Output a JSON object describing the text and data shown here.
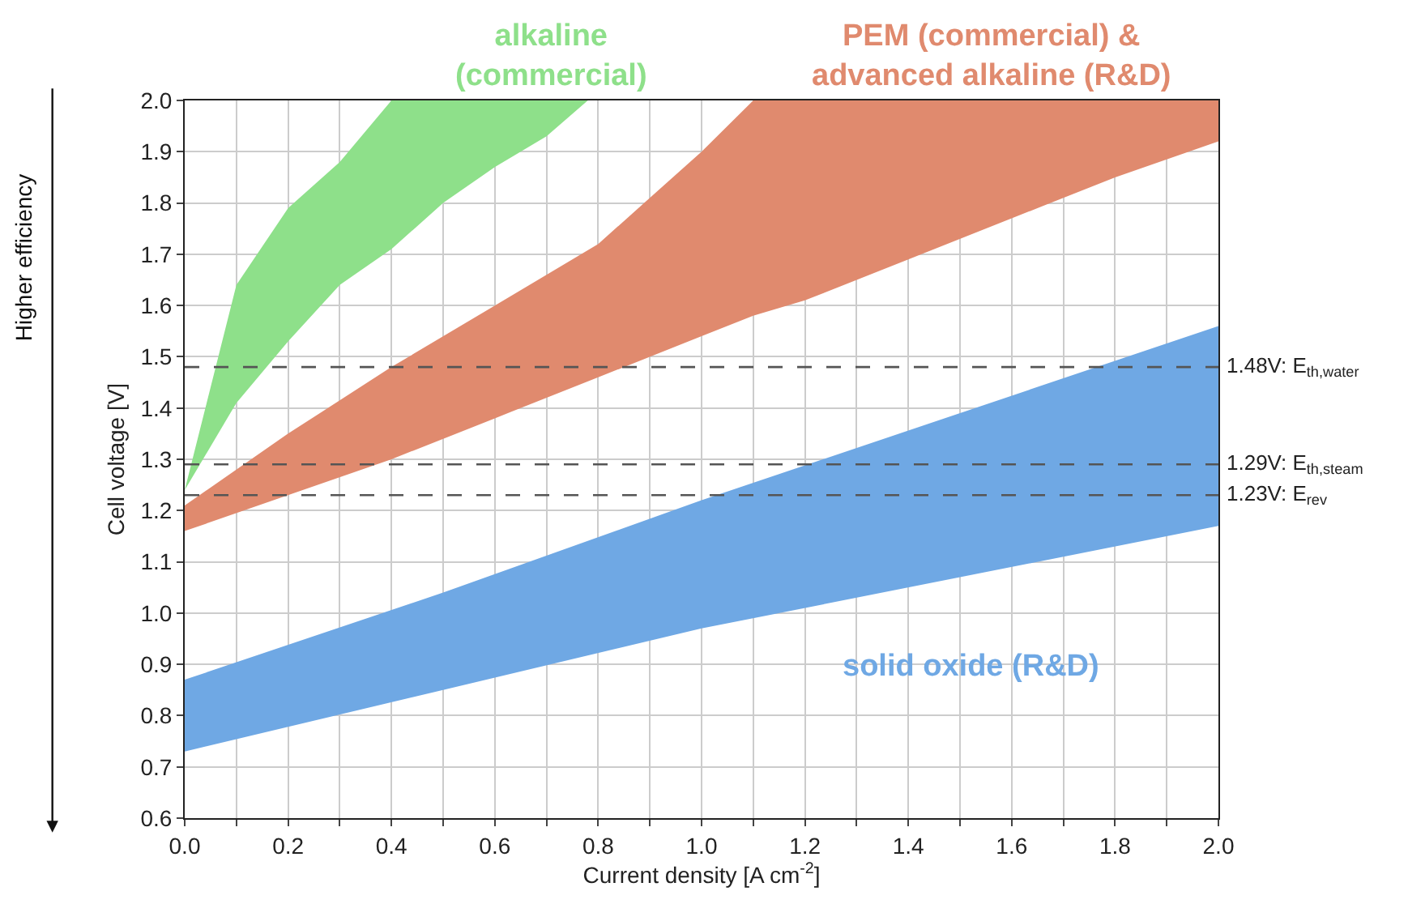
{
  "chart_data": {
    "type": "area",
    "xlabel": "Current density [A cm$^{-2}$]",
    "ylabel": "Cell voltage [V]",
    "xlim": [
      0,
      2.0
    ],
    "ylim": [
      0.6,
      2.0
    ],
    "xticks": [
      {
        "value": 0,
        "label": "0.0"
      },
      {
        "value": 0.1,
        "label": null
      },
      {
        "value": 0.2,
        "label": "0.2"
      },
      {
        "value": 0.3,
        "label": null
      },
      {
        "value": 0.4,
        "label": "0.4"
      },
      {
        "value": 0.5,
        "label": null
      },
      {
        "value": 0.6,
        "label": "0.6"
      },
      {
        "value": 0.7,
        "label": null
      },
      {
        "value": 0.8,
        "label": "0.8"
      },
      {
        "value": 0.9,
        "label": null
      },
      {
        "value": 1.0,
        "label": "1.0"
      },
      {
        "value": 1.1,
        "label": null
      },
      {
        "value": 1.2,
        "label": "1.2"
      },
      {
        "value": 1.3,
        "label": null
      },
      {
        "value": 1.4,
        "label": "1.4"
      },
      {
        "value": 1.5,
        "label": null
      },
      {
        "value": 1.6,
        "label": "1.6"
      },
      {
        "value": 1.7,
        "label": null
      },
      {
        "value": 1.8,
        "label": "1.8"
      },
      {
        "value": 1.9,
        "label": null
      },
      {
        "value": 2.0,
        "label": "2.0"
      }
    ],
    "yticks": [
      {
        "value": 0.6,
        "label": "0.6"
      },
      {
        "value": 0.7,
        "label": "0.7"
      },
      {
        "value": 0.8,
        "label": "0.8"
      },
      {
        "value": 0.9,
        "label": "0.9"
      },
      {
        "value": 1.0,
        "label": "1.0"
      },
      {
        "value": 1.1,
        "label": "1.1"
      },
      {
        "value": 1.2,
        "label": "1.2"
      },
      {
        "value": 1.3,
        "label": "1.3"
      },
      {
        "value": 1.4,
        "label": "1.4"
      },
      {
        "value": 1.5,
        "label": "1.5"
      },
      {
        "value": 1.6,
        "label": "1.6"
      },
      {
        "value": 1.7,
        "label": "1.7"
      },
      {
        "value": 1.8,
        "label": "1.8"
      },
      {
        "value": 1.9,
        "label": "1.9"
      },
      {
        "value": 2.0,
        "label": "2.0"
      }
    ],
    "grid": true,
    "legend": false,
    "series": [
      {
        "name": "alkaline\n(commercial)",
        "color": "#8ee08a",
        "x": [
          0,
          0.1,
          0.2,
          0.3,
          0.4,
          0.5,
          0.6,
          0.7,
          0.78
        ],
        "values": [
          null,
          null,
          null,
          null,
          null,
          null,
          null,
          null,
          null
        ],
        "upper": [
          1.24,
          1.64,
          1.79,
          1.88,
          2.0,
          2.0,
          2.0,
          2.0,
          2.0
        ],
        "lower": [
          1.24,
          1.41,
          1.53,
          1.64,
          1.71,
          1.8,
          1.87,
          1.93,
          2.0
        ]
      },
      {
        "name": "PEM (commercial) &\nadvanced alkaline (R&D)",
        "color": "#e08a6e",
        "x": [
          0,
          0.2,
          0.4,
          0.6,
          0.8,
          1.0,
          1.1,
          1.2,
          1.4,
          1.6,
          1.8,
          2.0
        ],
        "values": [
          null,
          null,
          null,
          null,
          null,
          null,
          null,
          null,
          null,
          null,
          null,
          null
        ],
        "upper": [
          1.21,
          1.35,
          1.48,
          1.6,
          1.72,
          1.9,
          2.0,
          2.0,
          2.0,
          2.0,
          2.0,
          2.0
        ],
        "lower": [
          1.16,
          1.23,
          1.3,
          1.38,
          1.46,
          1.54,
          1.58,
          1.61,
          1.69,
          1.77,
          1.85,
          1.92
        ]
      },
      {
        "name": "solid oxide (R&D)",
        "color": "#6fa8e4",
        "x": [
          0,
          0.5,
          1.0,
          1.5,
          2.0
        ],
        "values": [
          null,
          null,
          null,
          null,
          null
        ],
        "upper": [
          0.87,
          1.04,
          1.22,
          1.39,
          1.56
        ],
        "lower": [
          0.73,
          0.85,
          0.97,
          1.07,
          1.17
        ]
      }
    ],
    "ref_lines": [
      {
        "axis": "y",
        "value": 1.48,
        "label": "1.48V: E$_{th,water}$",
        "color": "#555555",
        "line_style": "dashed"
      },
      {
        "axis": "y",
        "value": 1.29,
        "label": "1.29V: E$_{th,steam}$",
        "color": "#555555",
        "line_style": "dashed"
      },
      {
        "axis": "y",
        "value": 1.23,
        "label": "1.23V: E$_{rev}$",
        "color": "#555555",
        "line_style": "dashed"
      }
    ],
    "annotations": [
      "Higher efficiency"
    ]
  }
}
